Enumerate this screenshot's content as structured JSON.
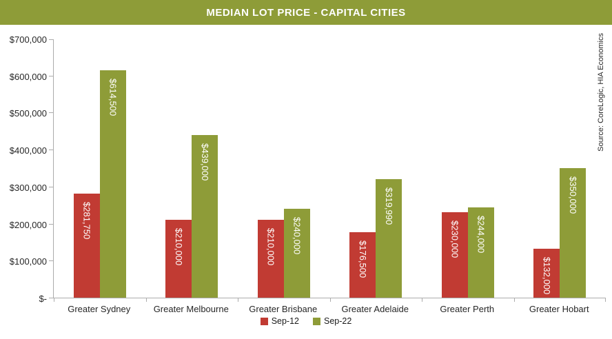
{
  "title": "MEDIAN LOT PRICE - CAPITAL CITIES",
  "source_note": "Source: CoreLogic, HIA Economics",
  "colors": {
    "title_bg": "#8e9c38",
    "sep12": "#c13b33",
    "sep22": "#8e9c38",
    "axis": "#ababab",
    "bar_label_text": "#ffffff",
    "axis_text": "#262626"
  },
  "chart_data": {
    "type": "bar",
    "title": "MEDIAN LOT PRICE - CAPITAL CITIES",
    "categories": [
      "Greater Sydney",
      "Greater Melbourne",
      "Greater Brisbane",
      "Greater Adelaide",
      "Greater Perth",
      "Greater Hobart"
    ],
    "series": [
      {
        "name": "Sep-12",
        "color": "#c13b33",
        "values": [
          281750,
          210000,
          210000,
          176500,
          230000,
          132000
        ]
      },
      {
        "name": "Sep-22",
        "color": "#8e9c38",
        "values": [
          614500,
          439000,
          240000,
          319990,
          244000,
          350000
        ]
      }
    ],
    "bar_value_labels": [
      [
        "$281,750",
        "$210,000",
        "$210,000",
        "$176,500",
        "$230,000",
        "$132,000"
      ],
      [
        "$614,500",
        "$439,000",
        "$240,000",
        "$319,990",
        "$244,000",
        "$350,000"
      ]
    ],
    "xlabel": "",
    "ylabel": "",
    "ylim": [
      0,
      700000
    ],
    "y_tick_labels": [
      "$-",
      "$100,000",
      "$200,000",
      "$300,000",
      "$400,000",
      "$500,000",
      "$600,000",
      "$700,000"
    ],
    "grid": false,
    "legend_position": "bottom",
    "bar_value_label_orientation": "vertical",
    "source_note": "Source: CoreLogic, HIA Economics"
  }
}
